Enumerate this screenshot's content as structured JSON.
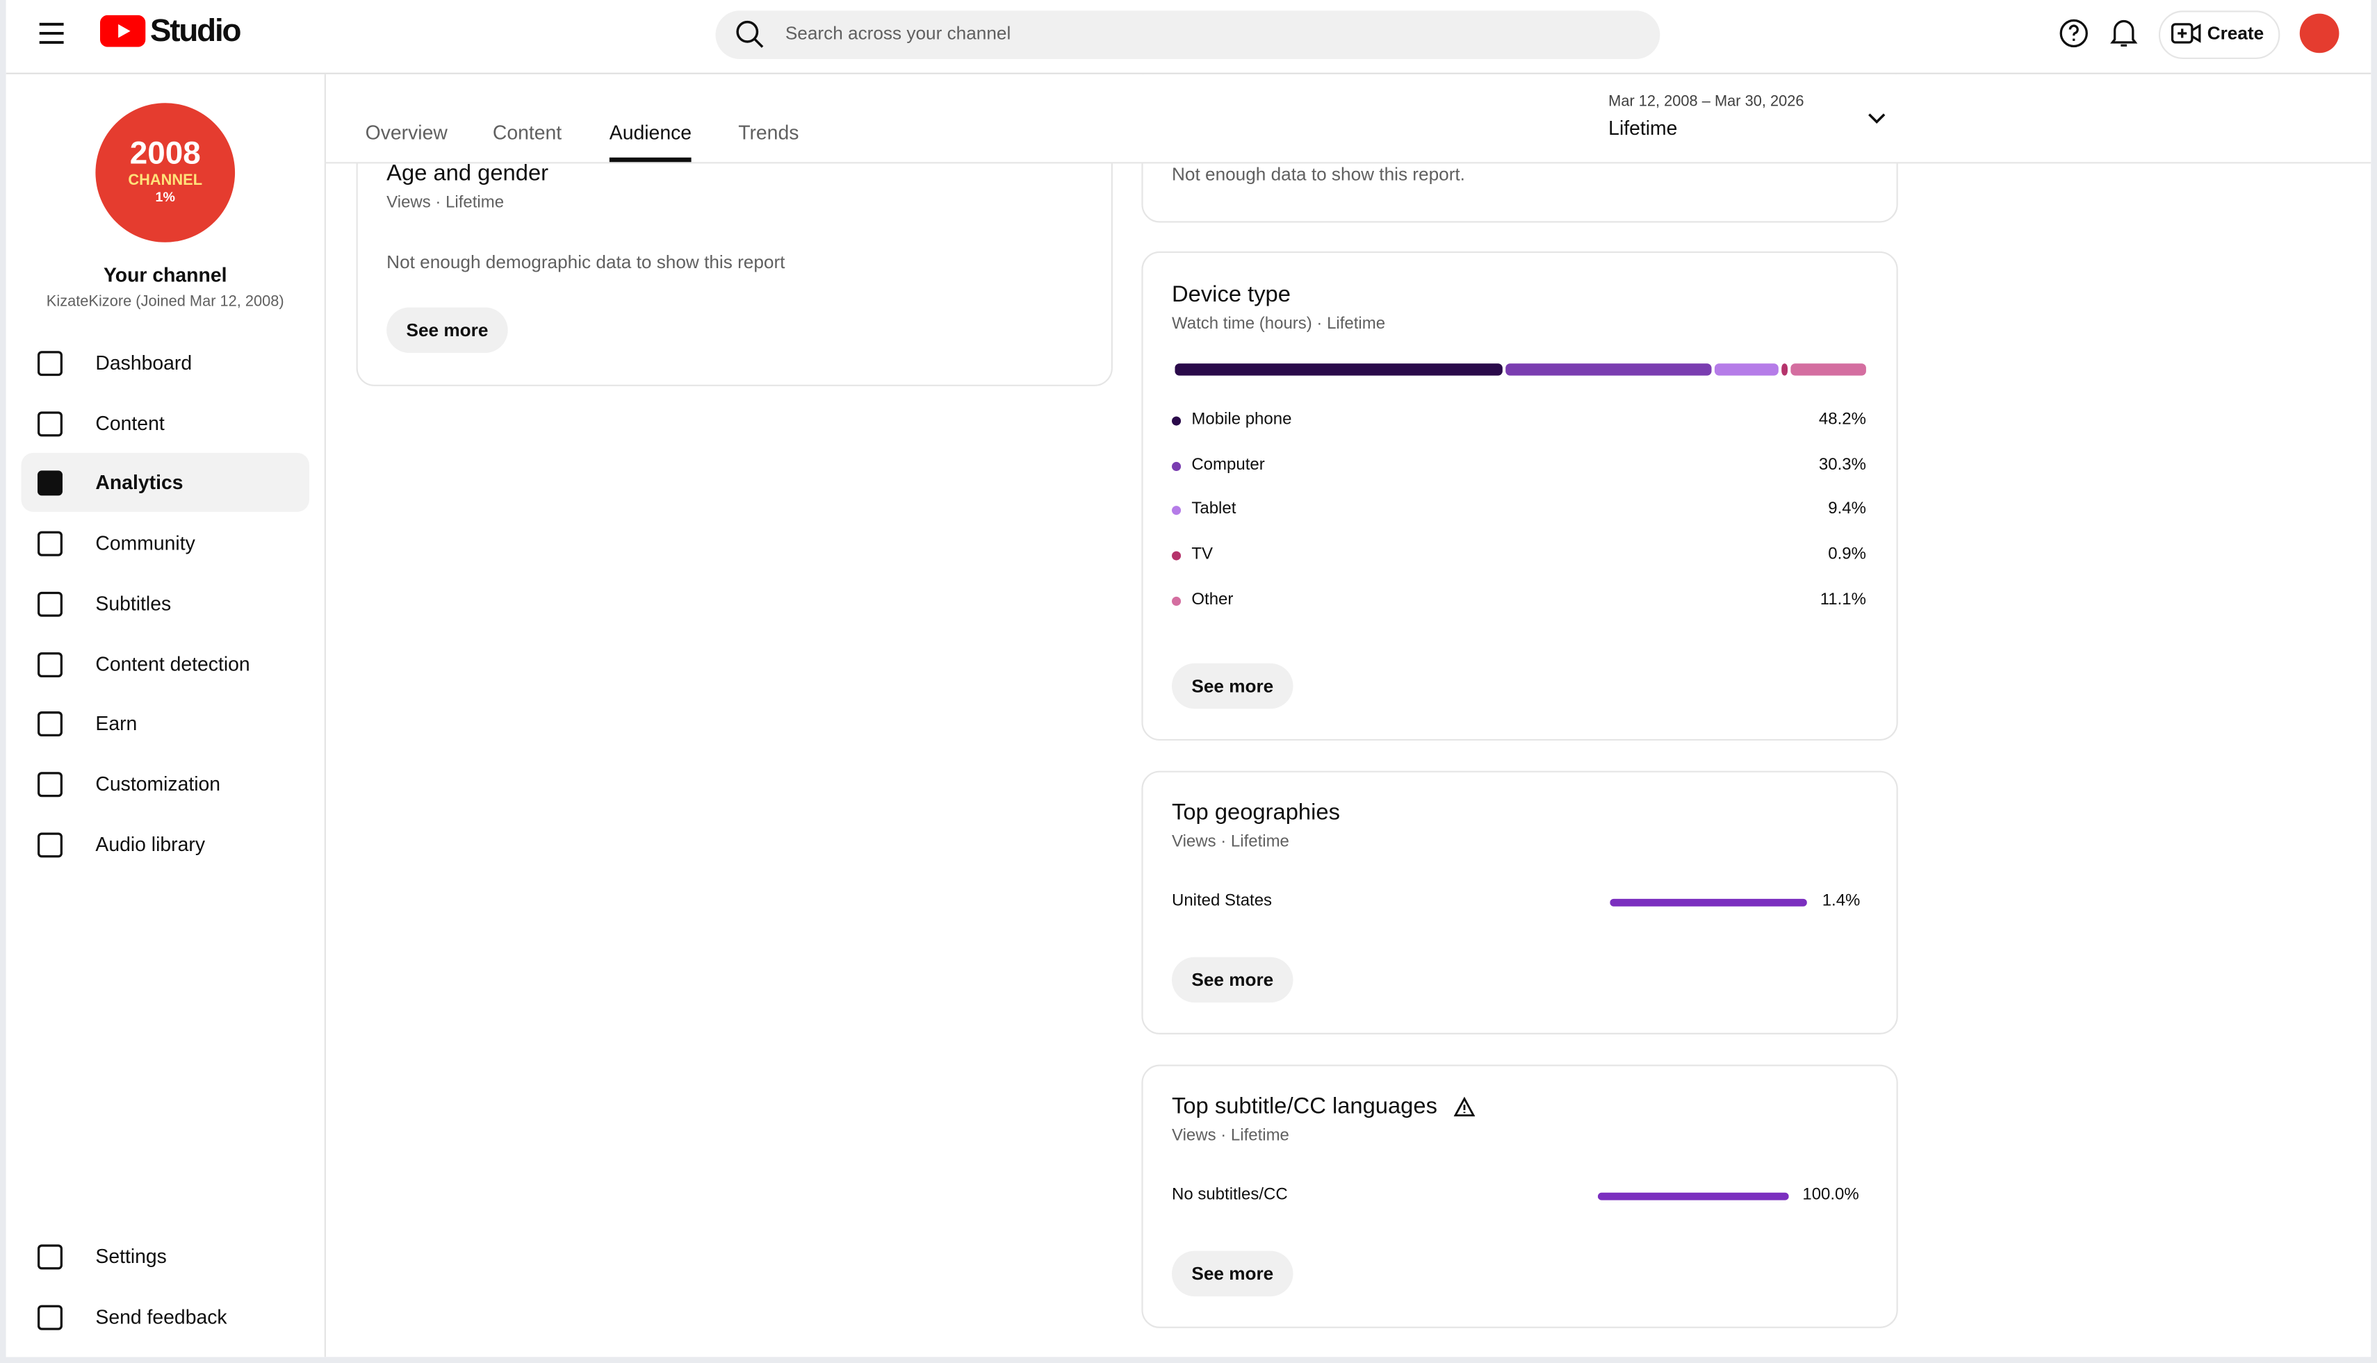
{
  "header": {
    "logo": "Studio",
    "search_placeholder": "Search across your channel",
    "create": "Create"
  },
  "sidebar": {
    "avatar": {
      "year": "2008",
      "label": "CHANNEL",
      "badge": "1%"
    },
    "channel_title": "Your channel",
    "channel_handle": "KizateKizore (Joined Mar 12, 2008)",
    "nav": [
      "Dashboard",
      "Content",
      "Analytics",
      "Community",
      "Subtitles",
      "Content detection",
      "Earn",
      "Customization",
      "Audio library"
    ],
    "active_nav": 2,
    "footer_nav": [
      "Settings",
      "Send feedback"
    ]
  },
  "tabs": [
    "Overview",
    "Content",
    "Audience",
    "Trends"
  ],
  "active_tab": 2,
  "date_range": {
    "range": "Mar 12, 2008 – Mar 30, 2026",
    "period": "Lifetime"
  },
  "age_gender": {
    "title": "Age and gender",
    "subtitle": "Views · Lifetime",
    "message": "Not enough demographic data to show this report",
    "button": "See more"
  },
  "top_card": {
    "message": "Not enough data to show this report."
  },
  "device_type": {
    "title": "Device type",
    "subtitle": "Watch time (hours) · Lifetime",
    "categories": [
      "Mobile phone",
      "Computer",
      "Tablet",
      "TV",
      "Other"
    ],
    "values": [
      48.2,
      30.3,
      9.4,
      0.9,
      11.1
    ],
    "value_labels": [
      "48.2%",
      "30.3%",
      "9.4%",
      "0.9%",
      "11.1%"
    ],
    "colors": [
      "#2a0a4a",
      "#7a3db0",
      "#b57ce8",
      "#b5336b",
      "#d46ea0"
    ],
    "button": "See more"
  },
  "geographies": {
    "title": "Top geographies",
    "subtitle": "Views · Lifetime",
    "categories": [
      "United States"
    ],
    "values": [
      1.4
    ],
    "value_labels": [
      "1.4%"
    ],
    "color": "#7b2fbf",
    "button": "See more"
  },
  "subtitle_languages": {
    "title": "Top subtitle/CC languages",
    "subtitle": "Views · Lifetime",
    "categories": [
      "No subtitles/CC"
    ],
    "values": [
      100.0
    ],
    "value_labels": [
      "100.0%"
    ],
    "color": "#7b2fbf",
    "button": "See more"
  }
}
